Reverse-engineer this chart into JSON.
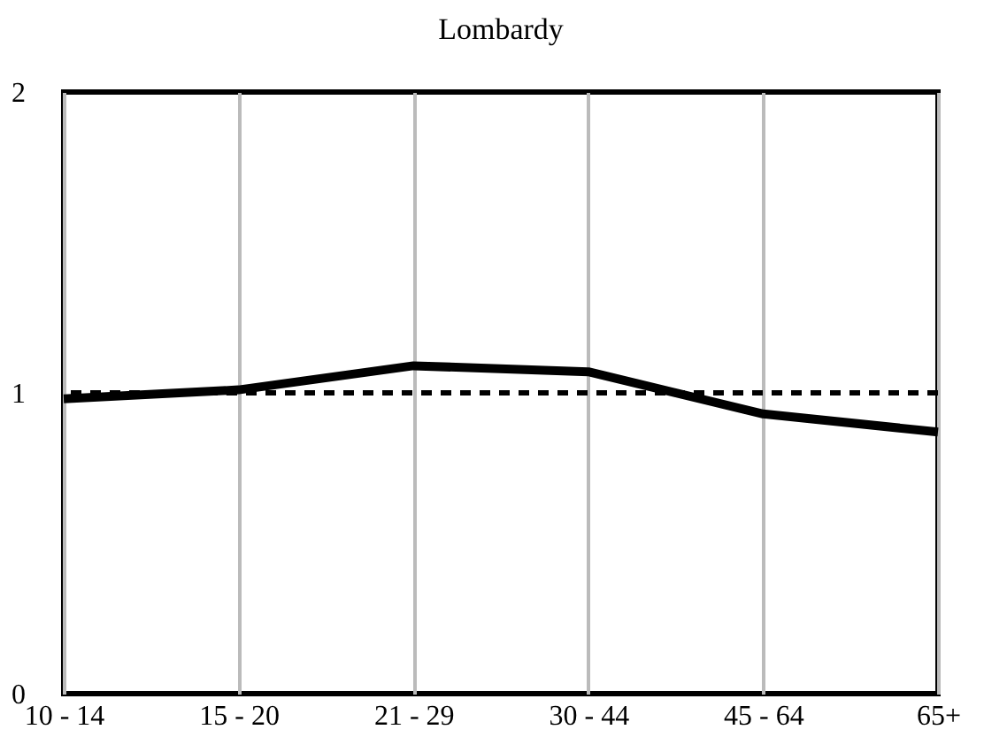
{
  "chart_data": {
    "type": "line",
    "title": "Lombardy",
    "categories": [
      "10 - 14",
      "15 - 20",
      "21 - 29",
      "30 - 44",
      "45 - 64",
      "65+"
    ],
    "series": [
      {
        "color": "#000000",
        "values": [
          0.98,
          1.01,
          1.09,
          1.07,
          0.93,
          0.87
        ]
      }
    ],
    "ylim": [
      0,
      2
    ],
    "yticks": [
      0,
      1,
      2
    ],
    "grid": "x",
    "ref_lines": [
      {
        "axis": "y",
        "value": 1,
        "color": "#000000",
        "line_style": "dashed"
      }
    ]
  }
}
